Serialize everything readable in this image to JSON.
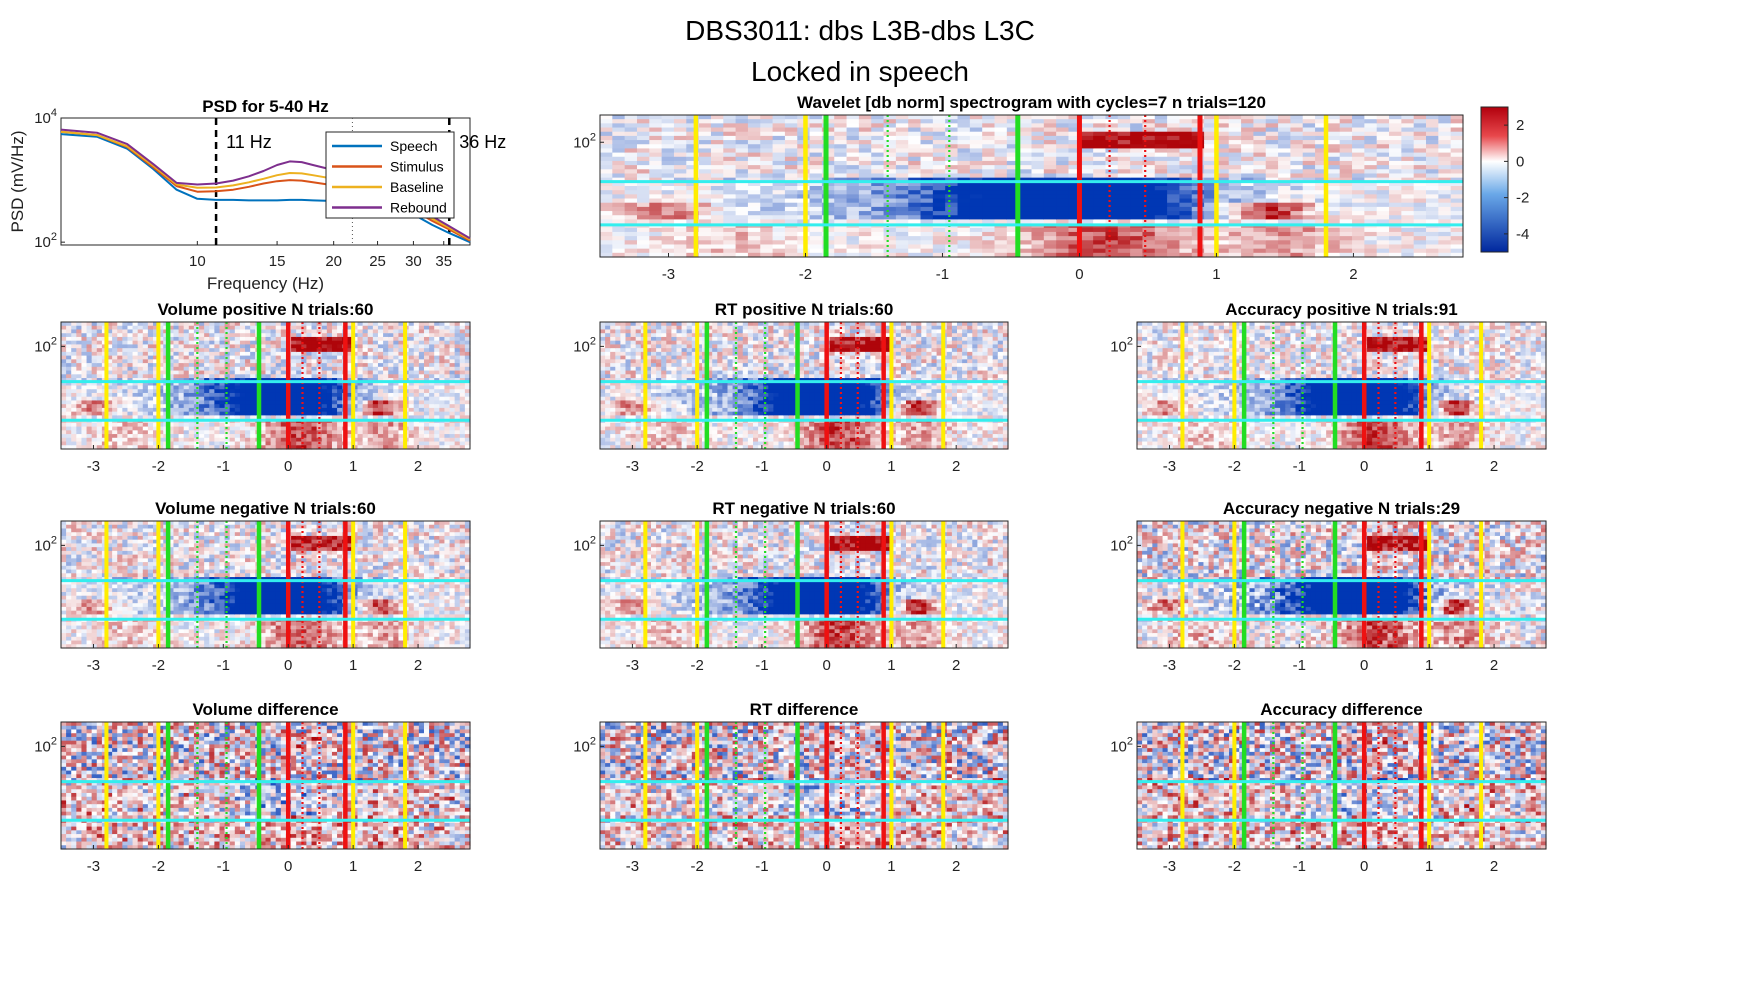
{
  "figure": {
    "title_line1": "DBS3011: dbs L3B-dbs L3C",
    "title_line2": "Locked in speech"
  },
  "chart_data": [
    {
      "id": "psd",
      "type": "line",
      "title": "PSD for 5-40 Hz",
      "xlabel": "Frequency (Hz)",
      "ylabel": "PSD (mV/Hz)",
      "xscale": "log",
      "yscale": "log",
      "xlim": [
        5,
        40
      ],
      "ylim": [
        90,
        10000
      ],
      "xticks": [
        10,
        15,
        20,
        25,
        30,
        35
      ],
      "yticks": [
        {
          "value": 100,
          "base": "10",
          "exp": "2"
        },
        {
          "value": 10000,
          "base": "10",
          "exp": "4"
        }
      ],
      "legend": "top-right",
      "annotations": [
        {
          "x": 11,
          "text": "11 Hz",
          "style": "dashed"
        },
        {
          "x": 36,
          "text": "36 Hz",
          "style": "dashed"
        },
        {
          "x": 22,
          "text": "",
          "style": "dotted"
        }
      ],
      "x": [
        5,
        6,
        7,
        8,
        9,
        10,
        11,
        12,
        13,
        14,
        15,
        16,
        17,
        18,
        20,
        22,
        25,
        28,
        30,
        33,
        36,
        40
      ],
      "series": [
        {
          "name": "Speech",
          "color": "#0072BD",
          "values": [
            5500,
            5000,
            3200,
            1500,
            700,
            500,
            480,
            480,
            470,
            470,
            470,
            480,
            480,
            470,
            460,
            450,
            420,
            350,
            280,
            190,
            140,
            100
          ]
        },
        {
          "name": "Stimulus",
          "color": "#D95319",
          "values": [
            6000,
            5300,
            3400,
            1600,
            800,
            650,
            660,
            700,
            780,
            880,
            960,
            1000,
            980,
            920,
            820,
            720,
            600,
            430,
            330,
            220,
            160,
            105
          ]
        },
        {
          "name": "Baseline",
          "color": "#EDB120",
          "values": [
            6000,
            5300,
            3500,
            1700,
            850,
            750,
            760,
            820,
            920,
            1050,
            1200,
            1300,
            1280,
            1200,
            1050,
            900,
            700,
            500,
            370,
            240,
            170,
            110
          ]
        },
        {
          "name": "Rebound",
          "color": "#7E2F8E",
          "values": [
            6500,
            5800,
            3800,
            1800,
            900,
            850,
            880,
            980,
            1150,
            1400,
            1750,
            2000,
            1950,
            1750,
            1450,
            1150,
            850,
            580,
            420,
            260,
            180,
            115
          ]
        }
      ]
    },
    {
      "id": "main",
      "type": "heatmap",
      "title": "Wavelet [db norm] spectrogram with cycles=7 n trials=120",
      "xticks": [
        -3,
        -2,
        -1,
        0,
        1,
        2
      ],
      "ytick": {
        "value": 100,
        "base": "10",
        "exp": "2"
      },
      "colorbar": {
        "ticks": [
          2,
          0,
          -2,
          -4
        ],
        "range": [
          -5,
          3
        ]
      },
      "blue_strength": 1.0,
      "red_strength": 1.0,
      "noise": 0.5
    },
    {
      "id": "vol_pos",
      "type": "heatmap",
      "title": "Volume positive N trials:60",
      "xticks": [
        -3,
        -2,
        -1,
        0,
        1,
        2
      ],
      "ytick": {
        "value": 100,
        "base": "10",
        "exp": "2"
      },
      "blue_strength": 1.0,
      "red_strength": 1.0,
      "noise": 0.6
    },
    {
      "id": "rt_pos",
      "type": "heatmap",
      "title": "RT positive N trials:60",
      "xticks": [
        -3,
        -2,
        -1,
        0,
        1,
        2
      ],
      "ytick": {
        "value": 100,
        "base": "10",
        "exp": "2"
      },
      "blue_strength": 1.0,
      "red_strength": 1.0,
      "noise": 0.6
    },
    {
      "id": "acc_pos",
      "type": "heatmap",
      "title": "Accuracy positive N trials:91",
      "xticks": [
        -3,
        -2,
        -1,
        0,
        1,
        2
      ],
      "ytick": {
        "value": 100,
        "base": "10",
        "exp": "2"
      },
      "blue_strength": 1.0,
      "red_strength": 1.0,
      "noise": 0.55
    },
    {
      "id": "vol_neg",
      "type": "heatmap",
      "title": "Volume negative N trials:60",
      "xticks": [
        -3,
        -2,
        -1,
        0,
        1,
        2
      ],
      "ytick": {
        "value": 100,
        "base": "10",
        "exp": "2"
      },
      "blue_strength": 1.0,
      "red_strength": 0.9,
      "noise": 0.6
    },
    {
      "id": "rt_neg",
      "type": "heatmap",
      "title": "RT negative N trials:60",
      "xticks": [
        -3,
        -2,
        -1,
        0,
        1,
        2
      ],
      "ytick": {
        "value": 100,
        "base": "10",
        "exp": "2"
      },
      "blue_strength": 1.0,
      "red_strength": 1.0,
      "noise": 0.6
    },
    {
      "id": "acc_neg",
      "type": "heatmap",
      "title": "Accuracy negative N trials:29",
      "xticks": [
        -3,
        -2,
        -1,
        0,
        1,
        2
      ],
      "ytick": {
        "value": 100,
        "base": "10",
        "exp": "2"
      },
      "blue_strength": 1.1,
      "red_strength": 1.0,
      "noise": 0.8
    },
    {
      "id": "vol_diff",
      "type": "heatmap",
      "title": "Volume difference",
      "xticks": [
        -3,
        -2,
        -1,
        0,
        1,
        2
      ],
      "ytick": {
        "value": 100,
        "base": "10",
        "exp": "2"
      },
      "blue_strength": 0.2,
      "red_strength": 0.2,
      "noise": 1.1,
      "positive_bias": 0.5
    },
    {
      "id": "rt_diff",
      "type": "heatmap",
      "title": "RT difference",
      "xticks": [
        -3,
        -2,
        -1,
        0,
        1,
        2
      ],
      "ytick": {
        "value": 100,
        "base": "10",
        "exp": "2"
      },
      "blue_strength": 0.2,
      "red_strength": 0.2,
      "noise": 1.1,
      "positive_bias": 0.4
    },
    {
      "id": "acc_diff",
      "type": "heatmap",
      "title": "Accuracy difference",
      "xticks": [
        -3,
        -2,
        -1,
        0,
        1,
        2
      ],
      "ytick": {
        "value": 100,
        "base": "10",
        "exp": "2"
      },
      "blue_strength": 0.2,
      "red_strength": 0.2,
      "noise": 1.1,
      "positive_bias": 0.5
    }
  ],
  "event_lines": {
    "time_range": [
      -3.5,
      2.8
    ],
    "freq_bands_hz": [
      8,
      30
    ],
    "yellow": [
      -2.8,
      -2.0,
      1.0,
      1.8
    ],
    "green_solid": [
      -1.85,
      -0.45
    ],
    "green_dotted": [
      -1.4,
      -0.95
    ],
    "red_solid": [
      0.0,
      0.88
    ],
    "red_dotted": [
      0.22,
      0.48
    ],
    "colors": {
      "yellow": "#FFEE00",
      "green": "#22DD22",
      "red": "#EE1111",
      "cyan": "#33EEEE"
    }
  }
}
